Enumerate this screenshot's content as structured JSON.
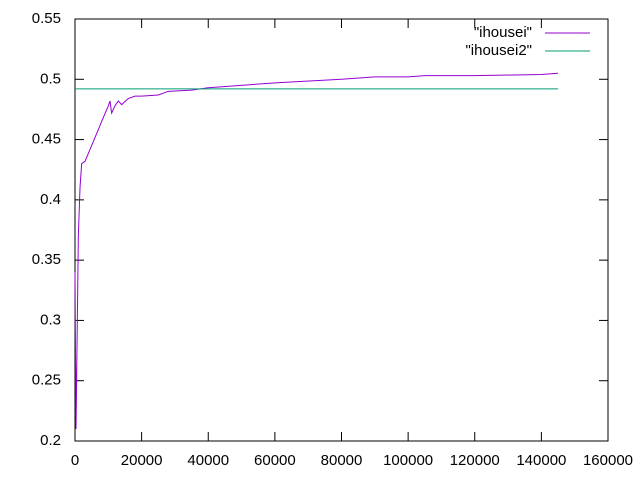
{
  "chart_data": {
    "type": "line",
    "series": [
      {
        "name": "\"ihousei\"",
        "color": "#9400d3",
        "x": [
          0,
          300,
          700,
          1000,
          1500,
          2000,
          3000,
          5000,
          8000,
          10000,
          10500,
          11000,
          12000,
          13000,
          14000,
          16000,
          18000,
          20000,
          25000,
          28000,
          35000,
          40000,
          60000,
          80000,
          90000,
          100000,
          105000,
          120000,
          140000,
          145000
        ],
        "values": [
          0.34,
          0.21,
          0.3,
          0.37,
          0.41,
          0.43,
          0.432,
          0.445,
          0.465,
          0.478,
          0.482,
          0.472,
          0.478,
          0.482,
          0.479,
          0.484,
          0.486,
          0.486,
          0.487,
          0.49,
          0.491,
          0.493,
          0.497,
          0.5,
          0.502,
          0.502,
          0.503,
          0.503,
          0.504,
          0.505
        ]
      },
      {
        "name": "\"ihousei2\"",
        "color": "#009e73",
        "x": [
          0,
          145000
        ],
        "values": [
          0.492,
          0.492
        ]
      }
    ],
    "xlim": [
      0,
      160000
    ],
    "xticks": [
      0,
      20000,
      40000,
      60000,
      80000,
      100000,
      120000,
      140000,
      160000
    ],
    "ylim": [
      0.2,
      0.55
    ],
    "yticks": [
      0.2,
      0.25,
      0.3,
      0.35,
      0.4,
      0.45,
      0.5,
      0.55
    ],
    "legend": "top-right",
    "grid": false
  }
}
